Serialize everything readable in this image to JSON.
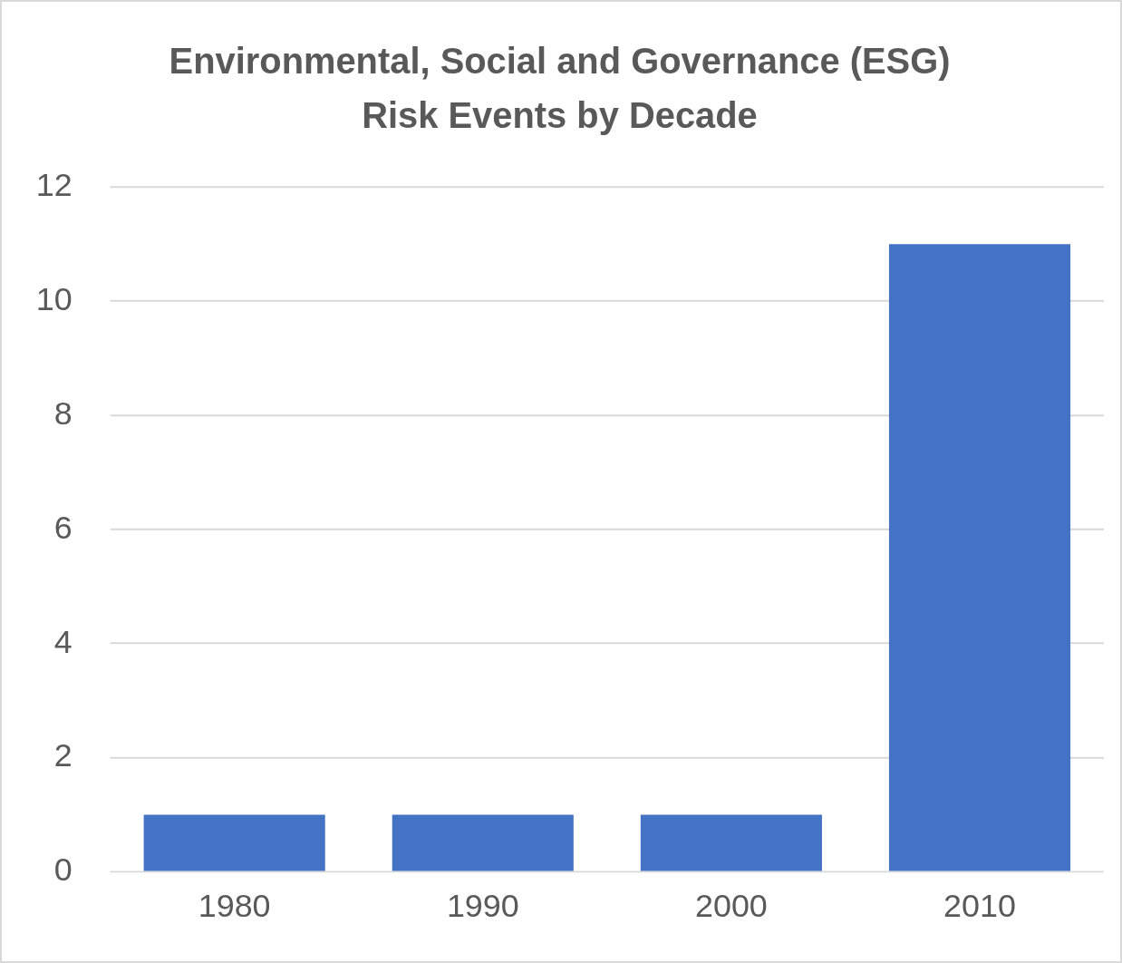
{
  "chart_data": {
    "type": "bar",
    "title": "Environmental, Social and Governance (ESG)\nRisk Events by Decade",
    "categories": [
      "1980",
      "1990",
      "2000",
      "2010"
    ],
    "values": [
      1,
      1,
      1,
      11
    ],
    "color": "#4472c4",
    "ylim": [
      0,
      12
    ],
    "yticks": [
      0,
      2,
      4,
      6,
      8,
      10,
      12
    ],
    "grid": "y"
  }
}
